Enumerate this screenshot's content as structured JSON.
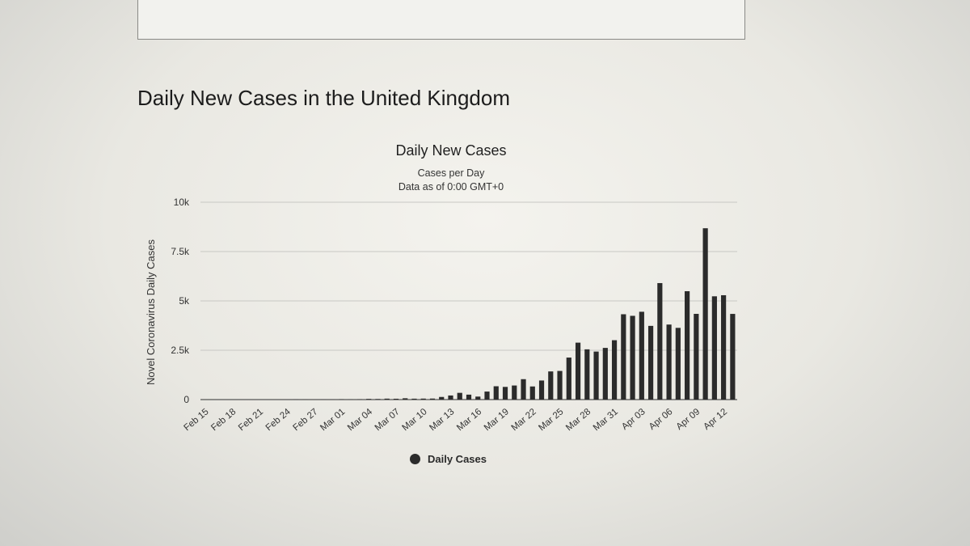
{
  "page": {
    "heading": "Daily New Cases in the United Kingdom"
  },
  "chart_data": {
    "type": "bar",
    "title": "Daily New Cases",
    "subtitle": [
      "Cases per Day",
      "Data as of 0:00 GMT+0"
    ],
    "ylabel": "Novel Coronavirus Daily Cases",
    "xlabel": "",
    "ylim": [
      0,
      10000
    ],
    "yticks": [
      0,
      2500,
      5000,
      7500,
      10000
    ],
    "ytick_labels": [
      "0",
      "2.5k",
      "5k",
      "7.5k",
      "10k"
    ],
    "x_tick_labels": [
      "Feb 15",
      "Feb 18",
      "Feb 21",
      "Feb 24",
      "Feb 27",
      "Mar 01",
      "Mar 04",
      "Mar 07",
      "Mar 10",
      "Mar 13",
      "Mar 16",
      "Mar 19",
      "Mar 22",
      "Mar 25",
      "Mar 28",
      "Mar 31",
      "Apr 03",
      "Apr 06",
      "Apr 09",
      "Apr 12"
    ],
    "grid": true,
    "legend_position": "bottom-center",
    "colors": {
      "bars": "#2b2b2b",
      "grid": "#c8c8c4",
      "axis": "#555555"
    },
    "categories": [
      "Feb 15",
      "Feb 16",
      "Feb 17",
      "Feb 18",
      "Feb 19",
      "Feb 20",
      "Feb 21",
      "Feb 22",
      "Feb 23",
      "Feb 24",
      "Feb 25",
      "Feb 26",
      "Feb 27",
      "Feb 28",
      "Feb 29",
      "Mar 01",
      "Mar 02",
      "Mar 03",
      "Mar 04",
      "Mar 05",
      "Mar 06",
      "Mar 07",
      "Mar 08",
      "Mar 09",
      "Mar 10",
      "Mar 11",
      "Mar 12",
      "Mar 13",
      "Mar 14",
      "Mar 15",
      "Mar 16",
      "Mar 17",
      "Mar 18",
      "Mar 19",
      "Mar 20",
      "Mar 21",
      "Mar 22",
      "Mar 23",
      "Mar 24",
      "Mar 25",
      "Mar 26",
      "Mar 27",
      "Mar 28",
      "Mar 29",
      "Mar 30",
      "Mar 31",
      "Apr 01",
      "Apr 02",
      "Apr 03",
      "Apr 04",
      "Apr 05",
      "Apr 06",
      "Apr 07",
      "Apr 08",
      "Apr 09",
      "Apr 10",
      "Apr 11",
      "Apr 12",
      "Apr 13"
    ],
    "series": [
      {
        "name": "Daily Cases",
        "values": [
          0,
          0,
          0,
          0,
          0,
          0,
          0,
          0,
          0,
          0,
          4,
          3,
          0,
          3,
          3,
          12,
          4,
          11,
          34,
          29,
          48,
          43,
          67,
          46,
          50,
          52,
          134,
          208,
          342,
          251,
          152,
          407,
          676,
          643,
          714,
          1035,
          665,
          967,
          1427,
          1452,
          2129,
          2885,
          2546,
          2433,
          2619,
          3009,
          4324,
          4244,
          4450,
          3735,
          5903,
          3802,
          3634,
          5491,
          4344,
          8681,
          5233,
          5288,
          4342
        ]
      }
    ]
  },
  "legend": {
    "label": "Daily Cases"
  }
}
